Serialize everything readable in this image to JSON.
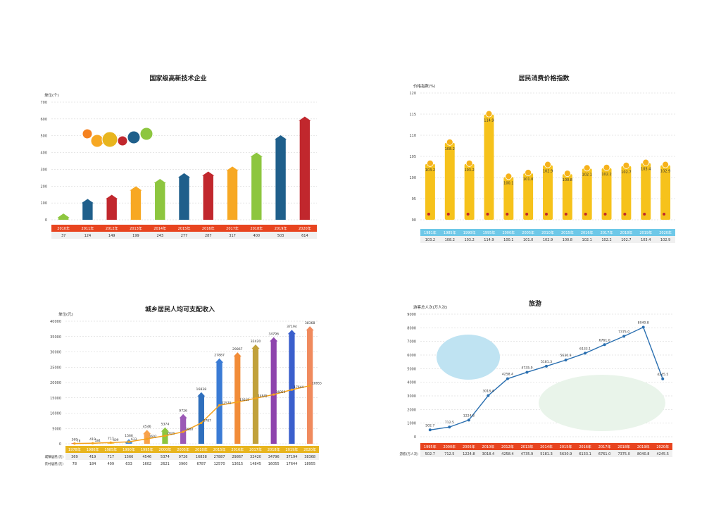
{
  "chart_data": [
    {
      "type": "bar",
      "title": "国家级高新技术企业",
      "ylabel": "单位(个)",
      "ylim": [
        0,
        700
      ],
      "yticks": [
        0,
        100,
        200,
        300,
        400,
        500,
        600,
        700
      ],
      "categories": [
        "2010年",
        "2011年",
        "2012年",
        "2013年",
        "2014年",
        "2015年",
        "2016年",
        "2017年",
        "2018年",
        "2019年",
        "2020年"
      ],
      "values": [
        37,
        124,
        149,
        199,
        243,
        277,
        287,
        317,
        400,
        503,
        614
      ],
      "colors": [
        "#8dc63f",
        "#1f5f8b",
        "#c1272d",
        "#f7a823",
        "#8dc63f",
        "#1f5f8b",
        "#c1272d",
        "#f7a823",
        "#8dc63f",
        "#1f5f8b",
        "#c1272d"
      ],
      "header_color": "#e8441f",
      "grid": true
    },
    {
      "type": "bar",
      "title": "居民消费价格指数",
      "ylabel": "价格指数(%)",
      "ylim": [
        90,
        120
      ],
      "yticks": [
        90,
        95,
        100,
        105,
        110,
        115,
        120
      ],
      "categories": [
        "1981年",
        "1985年",
        "1990年",
        "1995年",
        "2000年",
        "2005年",
        "2010年",
        "2015年",
        "2016年",
        "2017年",
        "2018年",
        "2019年",
        "2020年"
      ],
      "values": [
        103.2,
        108.2,
        103.2,
        114.9,
        100.1,
        101.0,
        102.9,
        100.8,
        102.1,
        102.2,
        102.7,
        103.4,
        102.9
      ],
      "color": "#f6c21b",
      "header_color": "#6ec8e8",
      "grid": true
    },
    {
      "type": "bar",
      "title": "城乡居民人均可支配收入",
      "ylabel": "单位(元)",
      "ylim": [
        0,
        40000
      ],
      "yticks": [
        0,
        5000,
        10000,
        15000,
        20000,
        25000,
        30000,
        35000,
        40000
      ],
      "categories": [
        "1978年",
        "1980年",
        "1985年",
        "1990年",
        "1995年",
        "2000年",
        "2005年",
        "2010年",
        "2015年",
        "2016年",
        "2017年",
        "2018年",
        "2019年",
        "2020年"
      ],
      "series": [
        {
          "name": "城镇居民(元)",
          "values": [
            369,
            419,
            717,
            1566,
            4546,
            5374,
            9726,
            16838,
            27887,
            29867,
            32420,
            34796,
            37194,
            38368
          ],
          "kind": "bar"
        },
        {
          "name": "农村居民(元)",
          "values": [
            78,
            184,
            409,
            633,
            1602,
            2621,
            3900,
            6787,
            12570,
            13615,
            14845,
            16055,
            17644,
            18955
          ],
          "kind": "line",
          "color": "#f4a21d"
        }
      ],
      "bar_colors": [
        "#e9573f",
        "#f7b538",
        "#f7c948",
        "#4a90d9",
        "#f8a24b",
        "#8dc63f",
        "#9b59b6",
        "#2f6fbd",
        "#3a7bd5",
        "#f28c38",
        "#c1a13b",
        "#8e44ad",
        "#3a5fcd",
        "#f08a5d"
      ],
      "header_color": "#e8b51e",
      "grid": true
    },
    {
      "type": "line",
      "title": "旅游",
      "ylabel": "游客总人次(万人次)",
      "ylim": [
        0,
        9000
      ],
      "yticks": [
        0,
        1000,
        2000,
        3000,
        4000,
        5000,
        6000,
        7000,
        8000,
        9000
      ],
      "categories": [
        "1995年",
        "2000年",
        "2005年",
        "2010年",
        "2012年",
        "2013年",
        "2014年",
        "2015年",
        "2016年",
        "2017年",
        "2018年",
        "2019年",
        "2020年"
      ],
      "series": [
        {
          "name": "游客(万人次)",
          "values": [
            502.7,
            712.5,
            1224.8,
            3018.4,
            4258.4,
            4735.9,
            5181.3,
            5630.9,
            6133.1,
            6761.0,
            7375.0,
            8040.8,
            4245.5
          ]
        }
      ],
      "color": "#2a6fb0",
      "header_color": "#e8441f",
      "grid": true
    }
  ]
}
